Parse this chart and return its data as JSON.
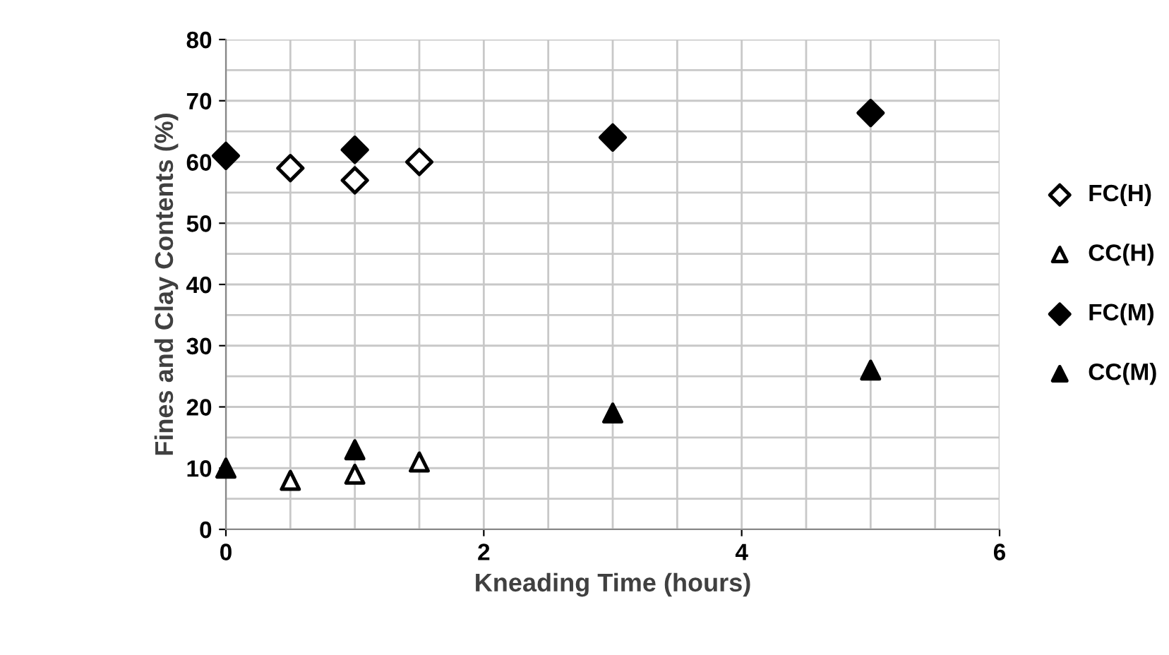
{
  "chart_data": {
    "type": "scatter",
    "xlabel": "Kneading Time (hours)",
    "ylabel": "Fines and Clay Contents (%)",
    "xlim": [
      0,
      6
    ],
    "ylim": [
      0,
      80
    ],
    "xticks": [
      0,
      {
        "value": 0.5,
        "label": null
      },
      {
        "value": 1,
        "label": null
      },
      {
        "value": 1.5,
        "label": null
      },
      2,
      {
        "value": 2.5,
        "label": null
      },
      {
        "value": 3,
        "label": null
      },
      {
        "value": 3.5,
        "label": null
      },
      4,
      {
        "value": 4.5,
        "label": null
      },
      {
        "value": 5,
        "label": null
      },
      {
        "value": 5.5,
        "label": null
      },
      6
    ],
    "yticks": [
      0,
      {
        "value": 5,
        "label": null
      },
      10,
      {
        "value": 15,
        "label": null
      },
      20,
      {
        "value": 25,
        "label": null
      },
      30,
      {
        "value": 35,
        "label": null
      },
      40,
      {
        "value": 45,
        "label": null
      },
      50,
      {
        "value": 55,
        "label": null
      },
      60,
      {
        "value": 65,
        "label": null
      },
      70,
      {
        "value": 75,
        "label": null
      },
      80
    ],
    "grid": true,
    "legend": "right",
    "series": [
      {
        "name": "FC(H)",
        "marker": "diamond",
        "color": "#ffffff",
        "x": [
          0.5,
          1,
          1.5
        ],
        "values": [
          59,
          57,
          60
        ]
      },
      {
        "name": "CC(H)",
        "marker": "triangle",
        "color": "#ffffff",
        "x": [
          0.5,
          1,
          1.5
        ],
        "values": [
          8,
          9,
          11
        ]
      },
      {
        "name": "FC(M)",
        "marker": "diamond",
        "color": "#000000",
        "x": [
          0,
          1,
          3,
          5
        ],
        "values": [
          61,
          62,
          64,
          68
        ]
      },
      {
        "name": "CC(M)",
        "marker": "triangle",
        "color": "#000000",
        "x": [
          0,
          1,
          3,
          5
        ],
        "values": [
          10,
          13,
          19,
          26
        ]
      }
    ]
  }
}
